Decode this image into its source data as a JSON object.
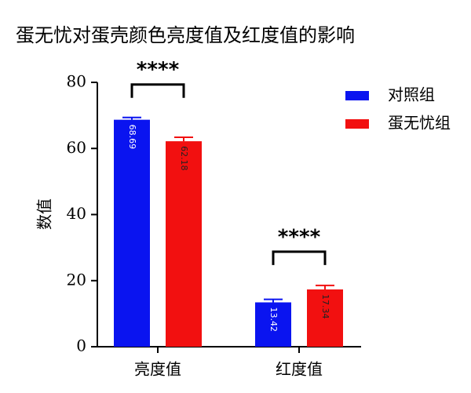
{
  "chart_data": {
    "type": "bar",
    "title": "蛋无忧对蛋壳颜色亮度值及红度值的影响",
    "y_label": "数值",
    "categories": [
      "亮度值",
      "红度值"
    ],
    "series": [
      {
        "name": "对照组",
        "color": "#0a14f0",
        "values": [
          68.69,
          13.42
        ],
        "errors": [
          0.7,
          0.9
        ]
      },
      {
        "name": "蛋无忧组",
        "color": "#f21010",
        "values": [
          62.18,
          17.34
        ],
        "errors": [
          1.2,
          1.2
        ]
      }
    ],
    "ylim": [
      0,
      80
    ],
    "yticks": [
      0,
      20,
      40,
      60,
      80
    ],
    "annotations": [
      "****",
      "****"
    ],
    "legend": "upper right"
  }
}
